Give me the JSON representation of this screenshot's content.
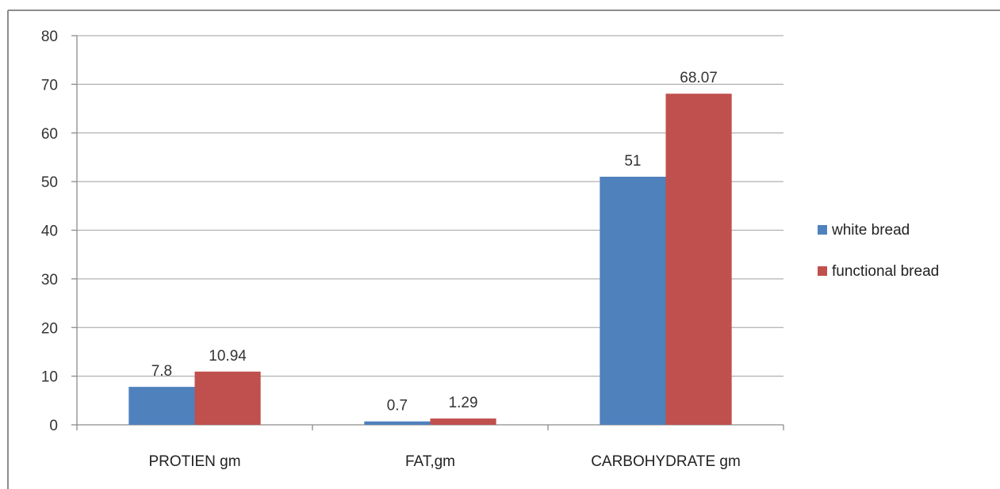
{
  "chart_data": {
    "type": "bar",
    "title": "",
    "xlabel": "",
    "ylabel": "",
    "categories": [
      "PROTIEN gm",
      "FAT,gm",
      "CARBOHYDRATE gm"
    ],
    "series": [
      {
        "name": "white bread",
        "color": "#4F81BD",
        "values": [
          7.8,
          0.7,
          51
        ]
      },
      {
        "name": "functional bread",
        "color": "#C0504D",
        "values": [
          10.94,
          1.29,
          68.07
        ]
      }
    ],
    "data_labels": [
      [
        "7.8",
        "0.7",
        "51"
      ],
      [
        "10.94",
        "1.29",
        "68.07"
      ]
    ],
    "ylim": [
      0,
      80
    ],
    "yticks": [
      0,
      10,
      20,
      30,
      40,
      50,
      60,
      70,
      80
    ],
    "grid": true,
    "legend_position": "right",
    "gridline_color": "#B0B0B0",
    "frame_color": "#8C8C8C"
  }
}
